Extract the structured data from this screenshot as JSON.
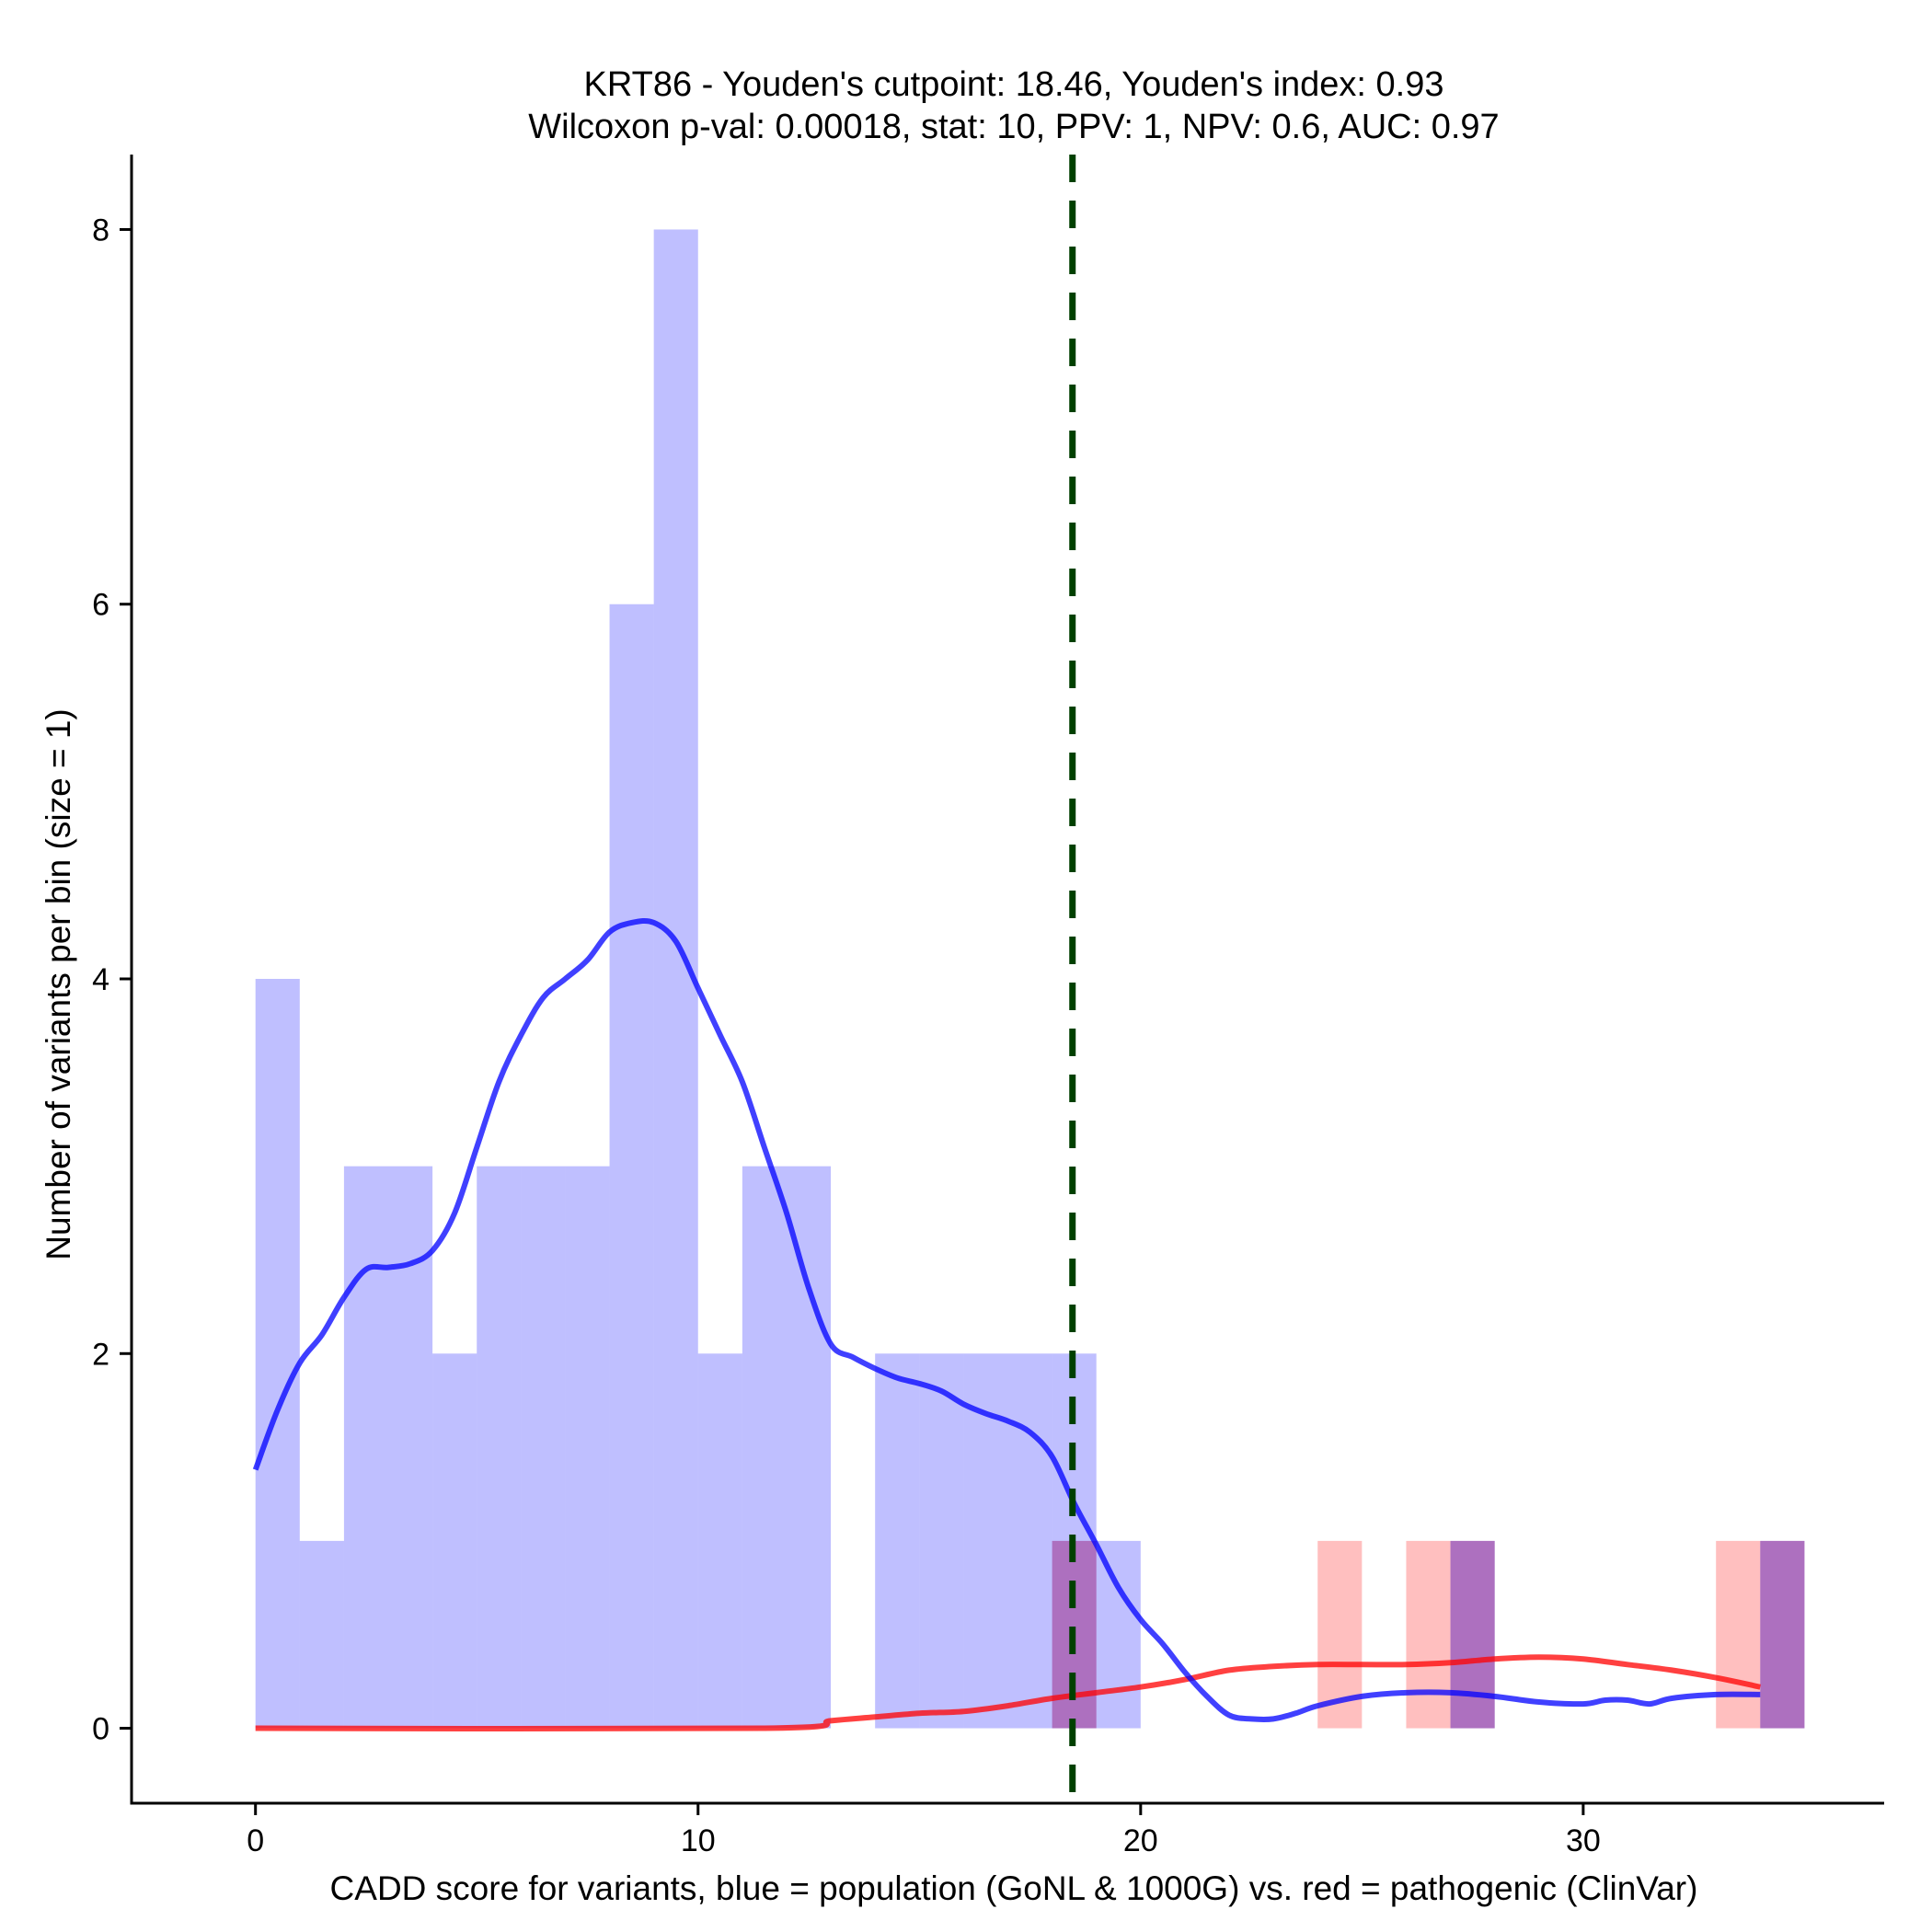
{
  "chart_data": {
    "type": "histogram",
    "title": [
      "KRT86 - Youden's cutpoint: 18.46, Youden's index: 0.93",
      "Wilcoxon p-val: 0.00018, stat: 10, PPV: 1, NPV: 0.6, AUC: 0.97"
    ],
    "xlabel": "CADD score for variants, blue = population (GoNL & 1000G) vs. red = pathogenic (ClinVar)",
    "ylabel": "Number of variants per bin (size = 1)",
    "xlim": [
      -2.8,
      36.8
    ],
    "ylim": [
      -0.4,
      8.4
    ],
    "xticks": [
      0,
      10,
      20,
      30
    ],
    "yticks": [
      0,
      2,
      4,
      6,
      8
    ],
    "bin_width": 1,
    "cutpoint": 18.46,
    "colors": {
      "population": "#0000ff",
      "pathogenic": "#ff0000",
      "overlap": "#9e2f8a",
      "cutpoint": "#004000"
    },
    "population_bins": [
      {
        "start": 0,
        "count": 4
      },
      {
        "start": 1,
        "count": 1
      },
      {
        "start": 2,
        "count": 3
      },
      {
        "start": 3,
        "count": 3
      },
      {
        "start": 4,
        "count": 2
      },
      {
        "start": 5,
        "count": 3
      },
      {
        "start": 6,
        "count": 3
      },
      {
        "start": 7,
        "count": 3
      },
      {
        "start": 8,
        "count": 6
      },
      {
        "start": 9,
        "count": 8
      },
      {
        "start": 10,
        "count": 2
      },
      {
        "start": 11,
        "count": 3
      },
      {
        "start": 12,
        "count": 3
      },
      {
        "start": 14,
        "count": 2
      },
      {
        "start": 15,
        "count": 2
      },
      {
        "start": 16,
        "count": 2
      },
      {
        "start": 17,
        "count": 2
      },
      {
        "start": 18,
        "count": 2
      },
      {
        "start": 19,
        "count": 1
      },
      {
        "start": 27,
        "count": 1
      },
      {
        "start": 34,
        "count": 1
      }
    ],
    "pathogenic_bins": [
      {
        "start": 18,
        "count": 1
      },
      {
        "start": 24,
        "count": 1
      },
      {
        "start": 26,
        "count": 1
      },
      {
        "start": 27,
        "count": 1
      },
      {
        "start": 33,
        "count": 1
      },
      {
        "start": 34,
        "count": 1
      }
    ],
    "population_density": {
      "x": [
        0,
        0.5,
        1,
        1.5,
        2,
        2.5,
        3,
        3.5,
        4,
        4.5,
        5,
        5.5,
        6,
        6.5,
        7,
        7.5,
        8,
        8.5,
        9,
        9.5,
        10,
        10.5,
        11,
        11.5,
        12,
        12.5,
        13,
        13.5,
        14,
        14.5,
        15,
        15.5,
        16,
        16.5,
        17,
        17.5,
        18,
        18.5,
        19,
        19.5,
        20,
        20.5,
        21,
        21.5,
        22,
        22.5,
        23,
        23.5,
        24,
        25,
        26,
        27,
        28,
        29,
        30,
        30.5,
        31,
        31.5,
        32,
        33,
        34
      ],
      "y": [
        1.38,
        1.7,
        1.95,
        2.1,
        2.3,
        2.45,
        2.46,
        2.48,
        2.55,
        2.75,
        3.1,
        3.45,
        3.7,
        3.9,
        4.0,
        4.1,
        4.25,
        4.3,
        4.3,
        4.2,
        3.95,
        3.7,
        3.45,
        3.1,
        2.75,
        2.35,
        2.05,
        1.98,
        1.92,
        1.87,
        1.84,
        1.8,
        1.73,
        1.68,
        1.64,
        1.58,
        1.45,
        1.2,
        0.98,
        0.75,
        0.58,
        0.45,
        0.3,
        0.17,
        0.07,
        0.05,
        0.05,
        0.08,
        0.12,
        0.17,
        0.19,
        0.19,
        0.17,
        0.14,
        0.13,
        0.15,
        0.15,
        0.13,
        0.16,
        0.18,
        0.18
      ]
    },
    "pathogenic_density": {
      "x": [
        0,
        11.5,
        13,
        14,
        15,
        16,
        17,
        18,
        19,
        20,
        21,
        22,
        23,
        24,
        25,
        26,
        27,
        28,
        29,
        30,
        31,
        32,
        33,
        34
      ],
      "y": [
        0,
        0,
        0.04,
        0.06,
        0.08,
        0.09,
        0.12,
        0.16,
        0.19,
        0.22,
        0.26,
        0.31,
        0.33,
        0.34,
        0.34,
        0.34,
        0.35,
        0.37,
        0.38,
        0.37,
        0.34,
        0.31,
        0.27,
        0.22
      ]
    }
  }
}
